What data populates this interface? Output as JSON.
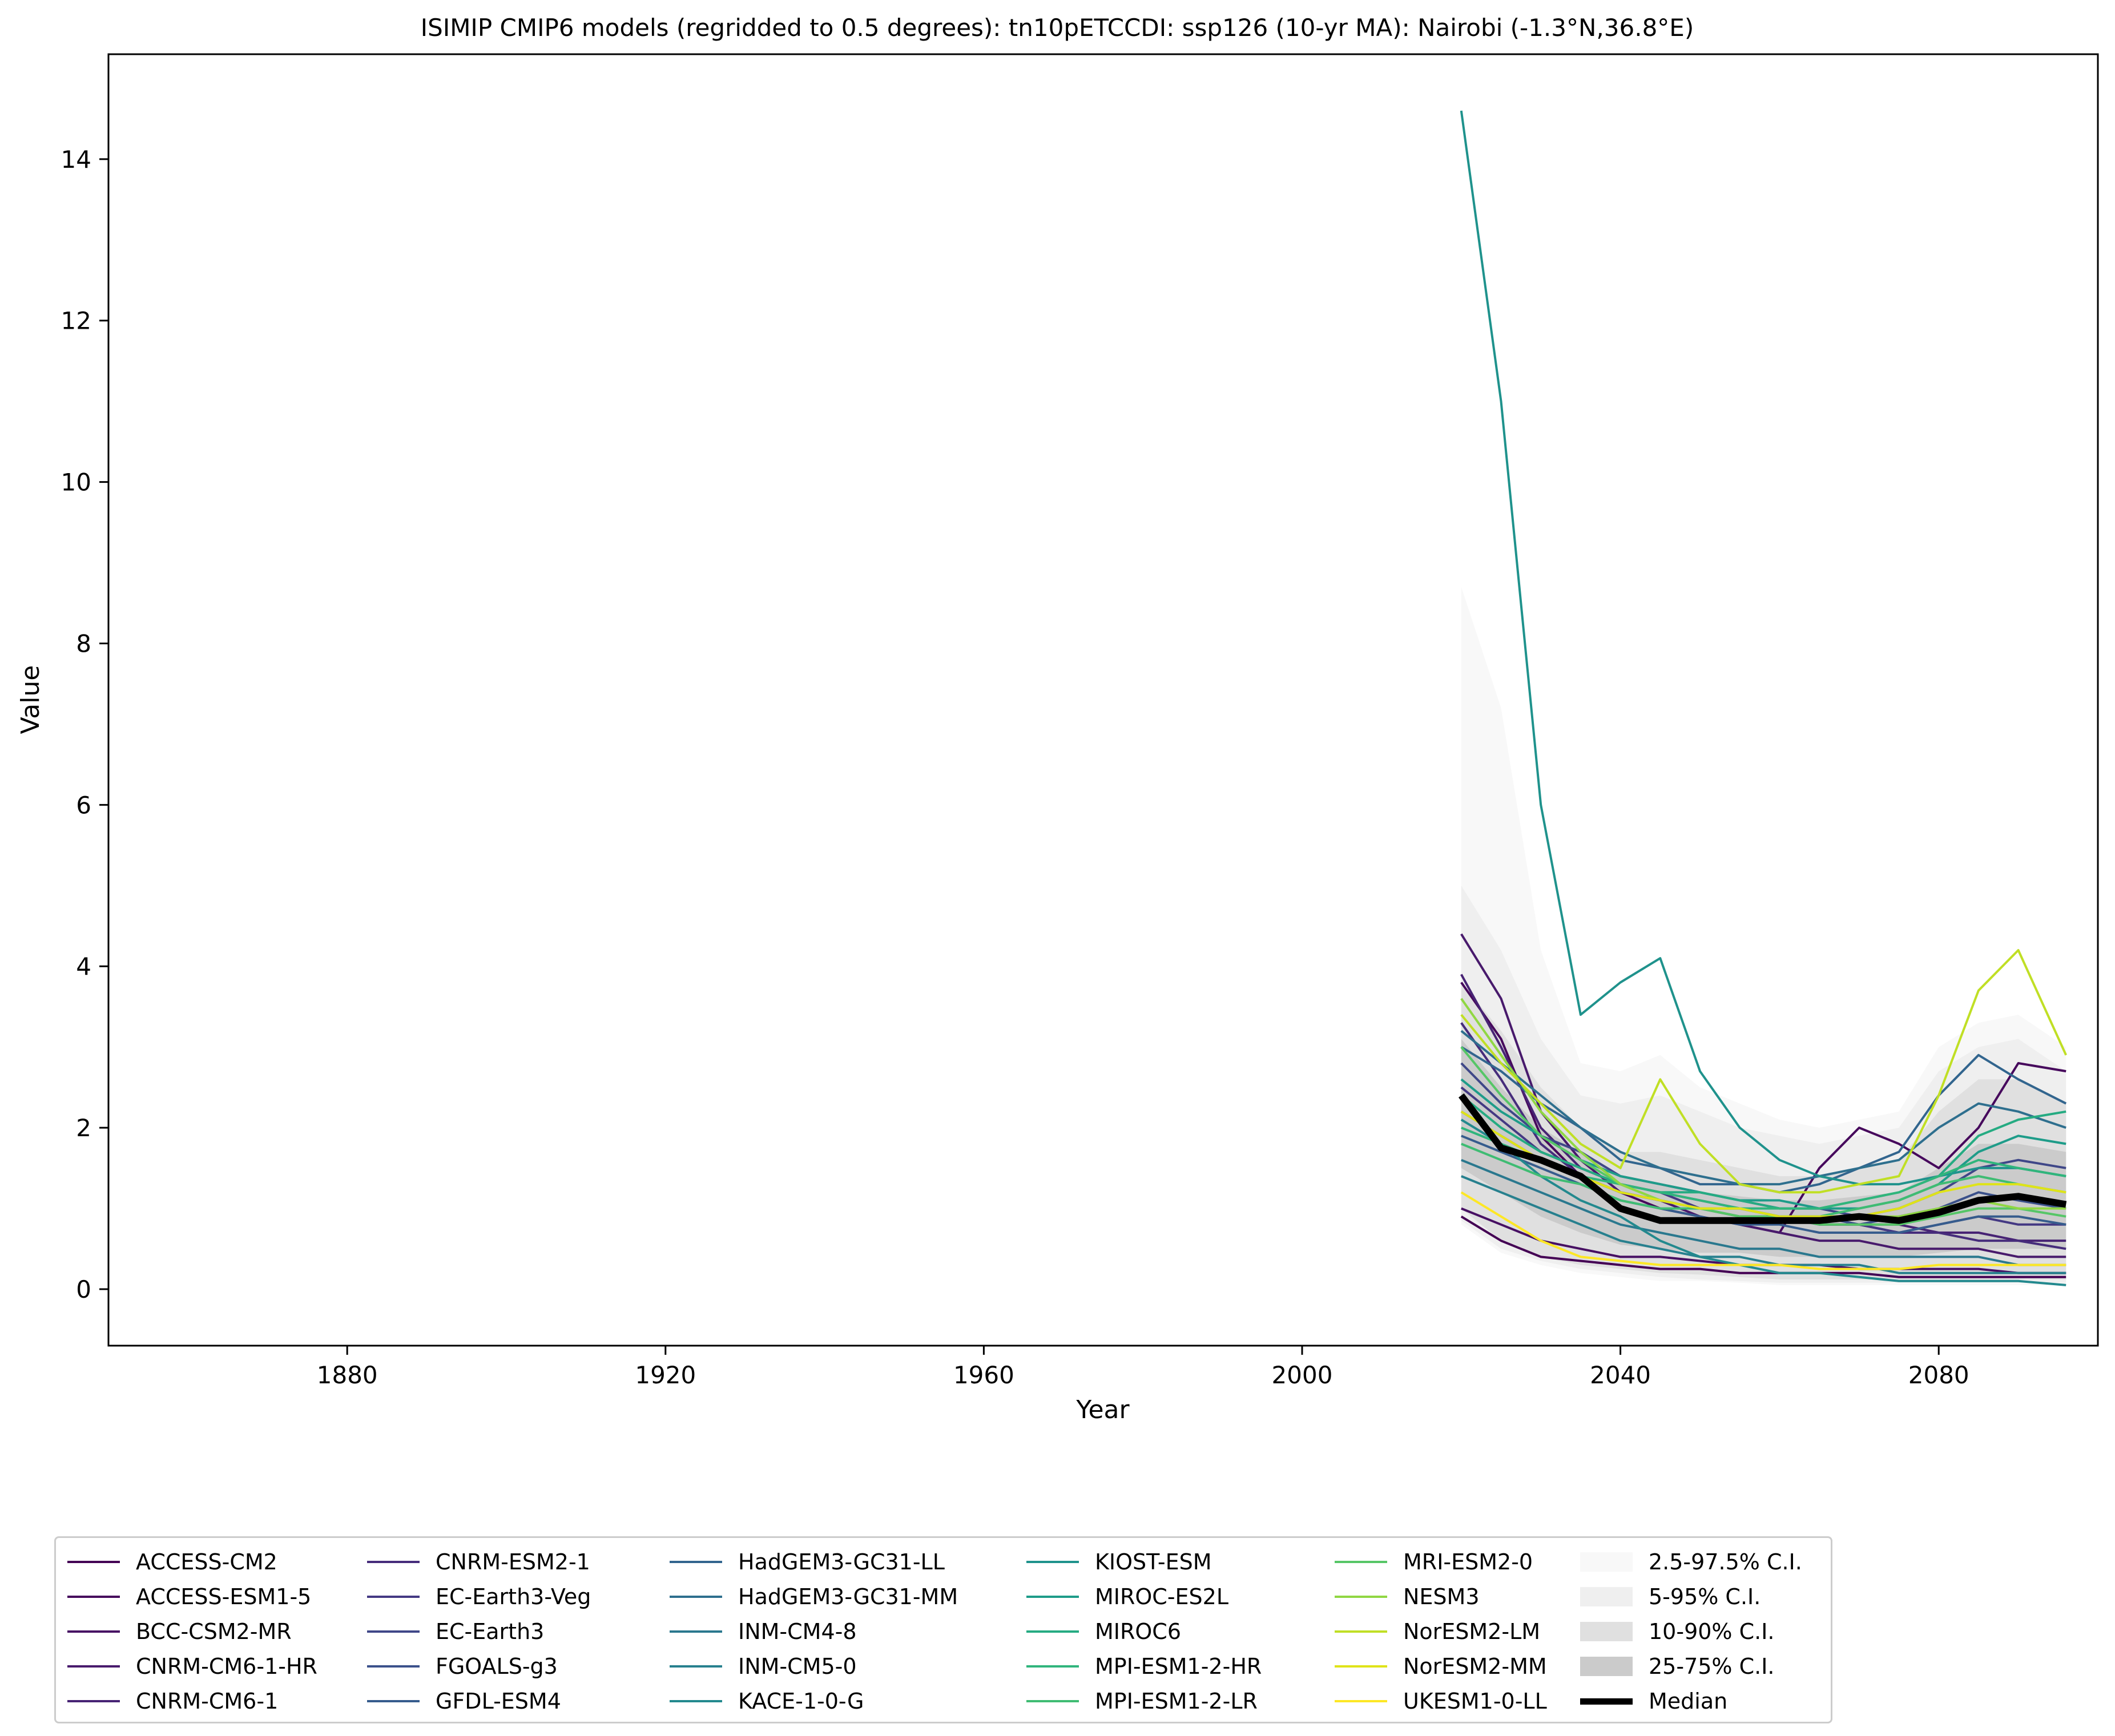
{
  "chart_data": {
    "type": "line",
    "title": "ISIMIP CMIP6 models (regridded to 0.5 degrees): tn10pETCCDI: ssp126 (10-yr MA): Nairobi (-1.3°N,36.8°E)",
    "xlabel": "Year",
    "ylabel": "Value",
    "xlim": [
      1850,
      2100
    ],
    "ylim": [
      -0.7,
      15.3
    ],
    "xticks": [
      1880,
      1920,
      1960,
      2000,
      2040,
      2080
    ],
    "yticks": [
      0,
      2,
      4,
      6,
      8,
      10,
      12,
      14
    ],
    "grid": false,
    "legend_placement": "bottom, below plot",
    "x": [
      2020,
      2025,
      2030,
      2035,
      2040,
      2045,
      2050,
      2055,
      2060,
      2065,
      2070,
      2075,
      2080,
      2085,
      2090,
      2096
    ],
    "series": [
      {
        "name": "ACCESS-CM2",
        "color": "#440154",
        "values": [
          0.9,
          0.6,
          0.4,
          0.35,
          0.3,
          0.25,
          0.25,
          0.2,
          0.2,
          0.2,
          0.2,
          0.15,
          0.15,
          0.15,
          0.15,
          0.15
        ]
      },
      {
        "name": "ACCESS-ESM1-5",
        "color": "#46085c",
        "values": [
          3.8,
          3.1,
          1.9,
          1.4,
          1.2,
          1.0,
          0.9,
          0.8,
          0.7,
          1.5,
          2.0,
          1.8,
          1.5,
          2.0,
          2.8,
          2.7
        ]
      },
      {
        "name": "BCC-CSM2-MR",
        "color": "#471063",
        "values": [
          1.0,
          0.8,
          0.6,
          0.5,
          0.4,
          0.4,
          0.35,
          0.3,
          0.3,
          0.3,
          0.25,
          0.25,
          0.25,
          0.25,
          0.2,
          0.2
        ]
      },
      {
        "name": "CNRM-CM6-1-HR",
        "color": "#481a6c",
        "values": [
          4.4,
          3.6,
          2.2,
          1.6,
          1.2,
          1.1,
          0.9,
          0.8,
          0.7,
          0.6,
          0.6,
          0.5,
          0.5,
          0.5,
          0.4,
          0.4
        ]
      },
      {
        "name": "CNRM-CM6-1",
        "color": "#472374",
        "values": [
          3.9,
          3.0,
          2.0,
          1.5,
          1.3,
          1.2,
          1.1,
          1.0,
          0.9,
          0.9,
          0.8,
          0.8,
          0.7,
          0.7,
          0.6,
          0.6
        ]
      },
      {
        "name": "CNRM-ESM2-1",
        "color": "#462c7b",
        "values": [
          3.3,
          2.6,
          1.8,
          1.4,
          1.2,
          1.1,
          1.0,
          0.9,
          0.9,
          0.8,
          0.8,
          0.7,
          0.7,
          0.6,
          0.6,
          0.5
        ]
      },
      {
        "name": "EC-Earth3-Veg",
        "color": "#443983",
        "values": [
          2.5,
          2.1,
          1.7,
          1.5,
          1.3,
          1.2,
          1.0,
          0.9,
          0.9,
          0.8,
          0.8,
          0.7,
          0.8,
          0.9,
          0.8,
          0.8
        ]
      },
      {
        "name": "EC-Earth3",
        "color": "#3f4788",
        "values": [
          2.8,
          2.3,
          1.9,
          1.7,
          1.4,
          1.3,
          1.2,
          1.1,
          1.0,
          1.0,
          0.9,
          1.0,
          1.2,
          1.5,
          1.6,
          1.5
        ]
      },
      {
        "name": "FGOALS-g3",
        "color": "#3b518b",
        "values": [
          2.2,
          1.9,
          1.6,
          1.4,
          1.2,
          1.1,
          1.0,
          1.0,
          0.9,
          0.9,
          0.8,
          0.9,
          1.0,
          1.2,
          1.1,
          1.0
        ]
      },
      {
        "name": "GFDL-ESM4",
        "color": "#365c8d",
        "values": [
          1.9,
          1.7,
          1.5,
          1.3,
          1.1,
          1.0,
          0.9,
          0.8,
          0.8,
          0.7,
          0.7,
          0.7,
          0.8,
          0.9,
          0.9,
          0.8
        ]
      },
      {
        "name": "HadGEM3-GC31-LL",
        "color": "#32658e",
        "values": [
          3.0,
          2.7,
          2.3,
          2.0,
          1.6,
          1.5,
          1.3,
          1.3,
          1.2,
          1.3,
          1.5,
          1.7,
          2.4,
          2.9,
          2.6,
          2.3
        ]
      },
      {
        "name": "HadGEM3-GC31-MM",
        "color": "#2e6f8e",
        "values": [
          3.2,
          2.8,
          2.4,
          2.0,
          1.7,
          1.5,
          1.4,
          1.3,
          1.3,
          1.4,
          1.5,
          1.6,
          2.0,
          2.3,
          2.2,
          2.0
        ]
      },
      {
        "name": "INM-CM4-8",
        "color": "#2a788e",
        "values": [
          1.6,
          1.4,
          1.2,
          1.0,
          0.8,
          0.7,
          0.6,
          0.5,
          0.5,
          0.4,
          0.4,
          0.4,
          0.4,
          0.4,
          0.3,
          0.3
        ]
      },
      {
        "name": "INM-CM5-0",
        "color": "#27808e",
        "values": [
          1.4,
          1.2,
          1.0,
          0.8,
          0.6,
          0.5,
          0.4,
          0.4,
          0.3,
          0.3,
          0.3,
          0.2,
          0.2,
          0.2,
          0.2,
          0.2
        ]
      },
      {
        "name": "KACE-1-0-G",
        "color": "#23898e",
        "values": [
          2.1,
          1.8,
          1.4,
          1.1,
          0.9,
          0.6,
          0.4,
          0.3,
          0.2,
          0.2,
          0.15,
          0.1,
          0.1,
          0.1,
          0.1,
          0.05
        ]
      },
      {
        "name": "KIOST-ESM",
        "color": "#1f928c",
        "values": [
          14.6,
          11.0,
          6.0,
          3.4,
          3.8,
          4.1,
          2.7,
          2.0,
          1.6,
          1.4,
          1.3,
          1.3,
          1.4,
          1.5,
          1.5,
          1.4
        ]
      },
      {
        "name": "MIROC-ES2L",
        "color": "#1e9c89",
        "values": [
          2.6,
          2.2,
          1.9,
          1.6,
          1.4,
          1.3,
          1.2,
          1.1,
          1.1,
          1.0,
          1.0,
          1.1,
          1.3,
          1.7,
          1.9,
          1.8
        ]
      },
      {
        "name": "MIROC6",
        "color": "#25ab82",
        "values": [
          2.4,
          2.0,
          1.7,
          1.5,
          1.3,
          1.2,
          1.2,
          1.1,
          1.0,
          1.0,
          1.1,
          1.2,
          1.4,
          1.9,
          2.1,
          2.2
        ]
      },
      {
        "name": "MPI-ESM1-2-HR",
        "color": "#30b57c",
        "values": [
          2.0,
          1.8,
          1.6,
          1.4,
          1.3,
          1.2,
          1.1,
          1.0,
          1.0,
          1.0,
          1.1,
          1.2,
          1.4,
          1.6,
          1.5,
          1.4
        ]
      },
      {
        "name": "MPI-ESM1-2-LR",
        "color": "#3fbc73",
        "values": [
          1.8,
          1.6,
          1.4,
          1.3,
          1.1,
          1.0,
          1.0,
          0.9,
          0.9,
          0.9,
          1.0,
          1.1,
          1.3,
          1.4,
          1.3,
          1.2
        ]
      },
      {
        "name": "MRI-ESM2-0",
        "color": "#56c667",
        "values": [
          3.0,
          2.4,
          1.9,
          1.6,
          1.3,
          1.1,
          1.0,
          0.9,
          0.9,
          0.8,
          0.8,
          0.8,
          0.9,
          1.0,
          1.0,
          0.9
        ]
      },
      {
        "name": "NESM3",
        "color": "#90d743",
        "values": [
          3.6,
          2.9,
          2.2,
          1.7,
          1.3,
          1.1,
          1.0,
          1.0,
          0.9,
          0.9,
          0.9,
          0.9,
          1.0,
          1.1,
          1.0,
          1.0
        ]
      },
      {
        "name": "NorESM2-LM",
        "color": "#c0df25",
        "values": [
          3.4,
          2.8,
          2.3,
          1.8,
          1.5,
          2.6,
          1.8,
          1.3,
          1.2,
          1.2,
          1.3,
          1.4,
          2.4,
          3.7,
          4.2,
          2.9
        ]
      },
      {
        "name": "NorESM2-MM",
        "color": "#dfe318",
        "values": [
          2.2,
          1.9,
          1.6,
          1.4,
          1.2,
          1.1,
          1.0,
          1.0,
          0.9,
          0.9,
          0.9,
          1.0,
          1.2,
          1.3,
          1.3,
          1.2
        ]
      },
      {
        "name": "UKESM1-0-LL",
        "color": "#fde725",
        "values": [
          1.2,
          0.9,
          0.6,
          0.4,
          0.35,
          0.3,
          0.3,
          0.3,
          0.3,
          0.25,
          0.25,
          0.25,
          0.3,
          0.3,
          0.3,
          0.3
        ]
      }
    ],
    "bands": [
      {
        "name": "2.5-97.5% C.I.",
        "color": "#f8f8f8",
        "lower": [
          0.8,
          0.45,
          0.3,
          0.2,
          0.15,
          0.1,
          0.1,
          0.08,
          0.05,
          0.05,
          0.05,
          0.05,
          0.05,
          0.05,
          0.05,
          0.05
        ],
        "upper": [
          8.7,
          7.2,
          4.2,
          2.8,
          2.7,
          2.9,
          2.5,
          2.3,
          2.1,
          2.0,
          2.1,
          2.2,
          3.0,
          3.3,
          3.4,
          3.0
        ]
      },
      {
        "name": "5-95% C.I.",
        "color": "#efefef",
        "lower": [
          0.85,
          0.5,
          0.35,
          0.25,
          0.2,
          0.15,
          0.12,
          0.1,
          0.08,
          0.08,
          0.08,
          0.08,
          0.08,
          0.08,
          0.08,
          0.08
        ],
        "upper": [
          5.0,
          4.2,
          3.1,
          2.4,
          2.3,
          2.4,
          2.2,
          2.0,
          1.9,
          1.8,
          1.9,
          2.0,
          2.7,
          3.0,
          3.1,
          2.7
        ]
      },
      {
        "name": "10-90% C.I.",
        "color": "#e0e0e0",
        "lower": [
          1.0,
          0.6,
          0.4,
          0.3,
          0.25,
          0.2,
          0.18,
          0.15,
          0.12,
          0.12,
          0.12,
          0.12,
          0.12,
          0.12,
          0.12,
          0.12
        ],
        "upper": [
          3.8,
          3.2,
          2.5,
          2.0,
          1.7,
          1.7,
          1.6,
          1.5,
          1.4,
          1.4,
          1.5,
          1.6,
          2.2,
          2.6,
          2.6,
          2.3
        ]
      },
      {
        "name": "25-75% C.I.",
        "color": "#cbcbcb",
        "lower": [
          1.5,
          1.2,
          0.9,
          0.7,
          0.55,
          0.5,
          0.45,
          0.45,
          0.4,
          0.4,
          0.4,
          0.4,
          0.45,
          0.5,
          0.5,
          0.5
        ],
        "upper": [
          3.1,
          2.5,
          2.0,
          1.7,
          1.4,
          1.3,
          1.2,
          1.15,
          1.1,
          1.1,
          1.15,
          1.2,
          1.5,
          1.8,
          1.8,
          1.7
        ]
      }
    ],
    "median": {
      "name": "Median",
      "color": "#000000",
      "values": [
        2.4,
        1.75,
        1.6,
        1.4,
        1.0,
        0.85,
        0.85,
        0.85,
        0.85,
        0.85,
        0.9,
        0.85,
        0.95,
        1.1,
        1.15,
        1.05
      ]
    }
  }
}
